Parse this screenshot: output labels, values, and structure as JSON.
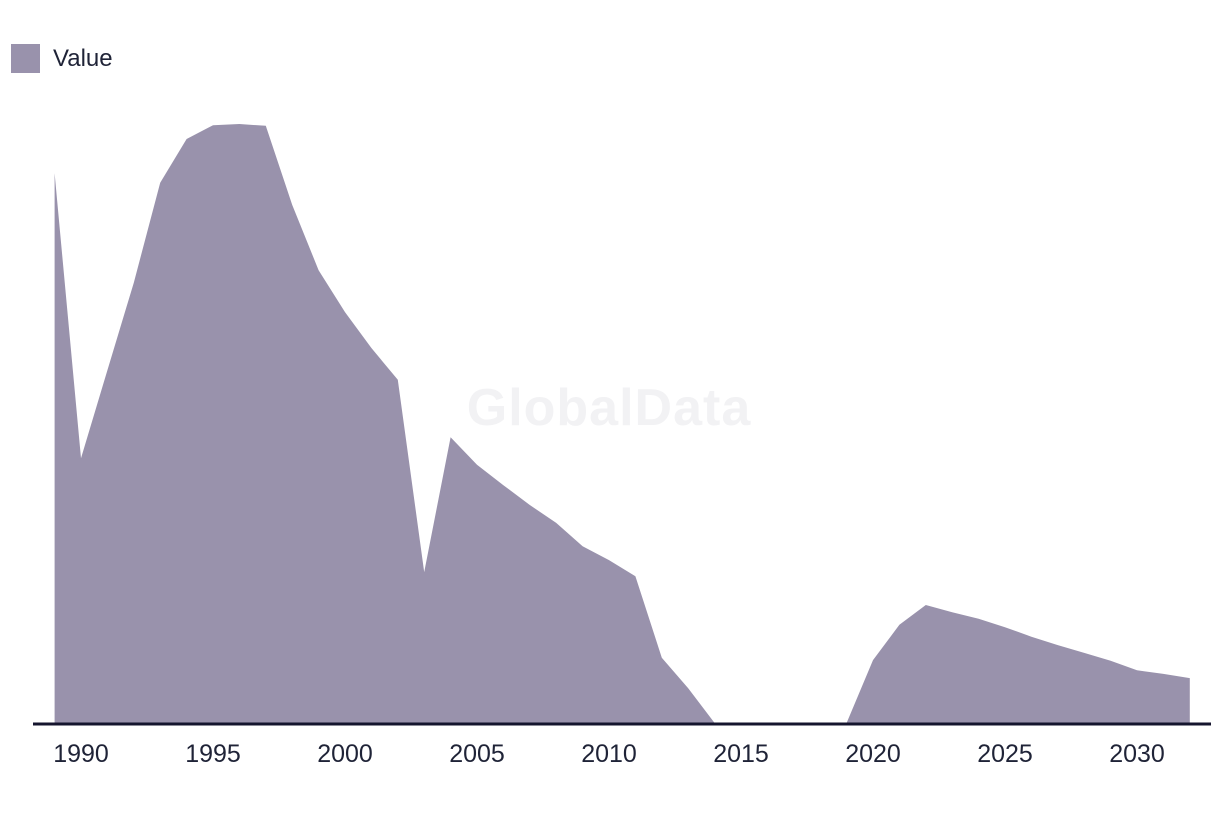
{
  "watermark": {
    "text": "GlobalData"
  },
  "colors": {
    "area_fill": "#9992ac",
    "axis_line": "#15152e",
    "tick_text": "#1f2337",
    "watermark_text": "#f2f2f4",
    "background": "#ffffff"
  },
  "chart_data": {
    "type": "area",
    "title": "",
    "xlabel": "",
    "ylabel": "",
    "x_ticks": [
      "1990",
      "1995",
      "2000",
      "2005",
      "2010",
      "2015",
      "2020",
      "2025",
      "2030"
    ],
    "xlim": [
      1989,
      2032
    ],
    "ylim": [
      0,
      105
    ],
    "grid": false,
    "y_axis_visible": false,
    "legend_position": "top-left",
    "series": [
      {
        "name": "Value",
        "color": "#9992ac",
        "x": [
          1989,
          1990,
          1991,
          1992,
          1993,
          1994,
          1995,
          1996,
          1997,
          1998,
          1999,
          2000,
          2001,
          2002,
          2003,
          2004,
          2005,
          2006,
          2007,
          2008,
          2009,
          2010,
          2011,
          2012,
          2013,
          2014,
          2015,
          2016,
          2017,
          2018,
          2019,
          2020,
          2021,
          2022,
          2023,
          2024,
          2025,
          2026,
          2027,
          2028,
          2029,
          2030,
          2031,
          2032
        ],
        "values": [
          91.8,
          44.2,
          58.9,
          73.5,
          90.2,
          97.5,
          99.8,
          100,
          99.7,
          86.5,
          75.6,
          68.6,
          62.6,
          57.3,
          25.2,
          47.7,
          43.1,
          39.7,
          36.4,
          33.4,
          29.5,
          27.2,
          24.5,
          10.9,
          5.8,
          0,
          0,
          0,
          0,
          0,
          0,
          10.5,
          16.4,
          19.7,
          18.5,
          17.4,
          16.0,
          14.4,
          13.0,
          11.7,
          10.4,
          8.8,
          8.2,
          7.5
        ]
      }
    ]
  }
}
